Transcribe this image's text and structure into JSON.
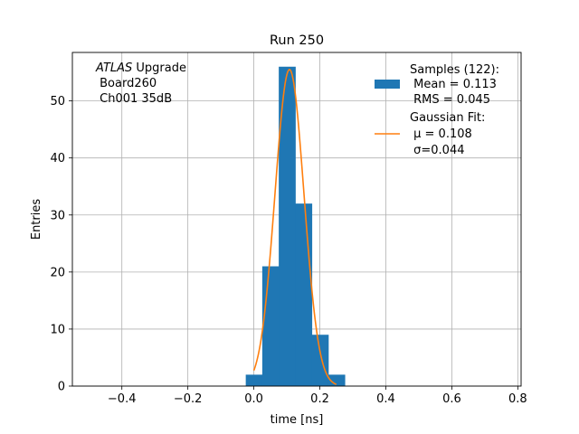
{
  "chart_data": {
    "type": "bar",
    "title": "Run 250",
    "xlabel": "time [ns]",
    "ylabel": "Entries",
    "xlim": [
      -0.55,
      0.81
    ],
    "ylim": [
      0,
      58.5
    ],
    "xticks": [
      -0.4,
      -0.2,
      0.0,
      0.2,
      0.4,
      0.6,
      0.8
    ],
    "xtick_labels": [
      "−0.4",
      "−0.2",
      "0.0",
      "0.2",
      "0.4",
      "0.6",
      "0.8"
    ],
    "yticks": [
      0,
      10,
      20,
      30,
      40,
      50
    ],
    "ytick_labels": [
      "0",
      "10",
      "20",
      "30",
      "40",
      "50"
    ],
    "grid": true,
    "legend_position": "upper-right",
    "annotation": {
      "italic": "ATLAS",
      "rest": " Upgrade",
      "line2": " Board260",
      "line3": " Ch001 35dB"
    },
    "series": [
      {
        "name": "Samples (122):",
        "name_lines": [
          "Samples (122):",
          " Mean = 0.113",
          " RMS = 0.045"
        ],
        "kind": "histogram",
        "color": "#1f77b4",
        "bins": [
          {
            "x0": -0.0245,
            "x1": 0.0255,
            "count": 2
          },
          {
            "x0": 0.0255,
            "x1": 0.0755,
            "count": 21
          },
          {
            "x0": 0.0755,
            "x1": 0.1255,
            "count": 56
          },
          {
            "x0": 0.1255,
            "x1": 0.1755,
            "count": 32
          },
          {
            "x0": 0.1755,
            "x1": 0.2255,
            "count": 9
          },
          {
            "x0": 0.2255,
            "x1": 0.2755,
            "count": 2
          }
        ]
      },
      {
        "name": "Gaussian Fit:",
        "name_lines": [
          "Gaussian Fit:",
          " μ = 0.108",
          " σ=0.044"
        ],
        "kind": "line",
        "color": "#ff7f0e",
        "amplitude": 55.5,
        "mu": 0.108,
        "sigma": 0.044,
        "x_range": [
          0.0,
          0.25
        ]
      }
    ]
  }
}
